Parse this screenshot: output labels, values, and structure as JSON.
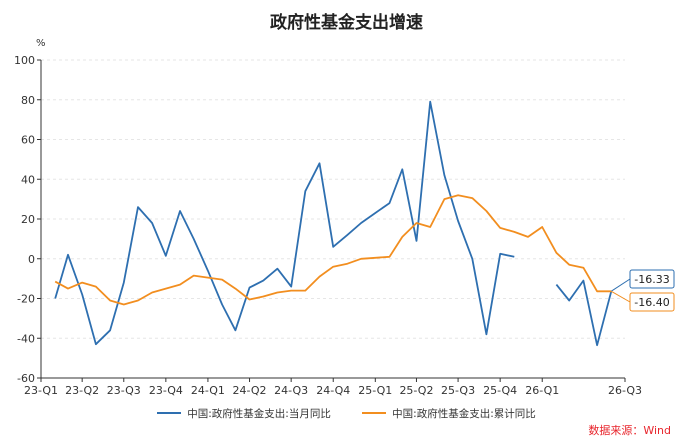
{
  "chart_data": {
    "type": "line",
    "title": "政府性基金支出增速",
    "unit": "%",
    "ylim": [
      -60,
      100
    ],
    "yticks": [
      -60,
      -40,
      -20,
      0,
      20,
      40,
      60,
      80,
      100
    ],
    "x_tick_labels": [
      "23-Q1",
      "23-Q2",
      "23-Q3",
      "23-Q4",
      "24-Q1",
      "24-Q2",
      "24-Q3",
      "24-Q4",
      "25-Q1",
      "25-Q2",
      "25-Q3",
      "25-Q4",
      "26-Q1",
      "26-Q3"
    ],
    "x": [
      "2023-02",
      "2023-03",
      "2023-04",
      "2023-05",
      "2023-06",
      "2023-07",
      "2023-08",
      "2023-09",
      "2023-10",
      "2023-11",
      "2023-12",
      "2024-01",
      "2024-02",
      "2024-03",
      "2024-04",
      "2024-05",
      "2024-06",
      "2024-07",
      "2024-08",
      "2024-09",
      "2024-10",
      "2024-11",
      "2024-12",
      "2025-01",
      "2025-02",
      "2025-03",
      "2025-04",
      "2025-05",
      "2025-06",
      "2025-07",
      "2025-08",
      "2025-09",
      "2025-10",
      "2025-11",
      "2025-12",
      "2026-01",
      "2026-02",
      "2026-03",
      "2026-04",
      "2026-05",
      "2026-06"
    ],
    "grid": true,
    "legend_position": "bottom",
    "series": [
      {
        "name": "中国:政府性基金支出:当月同比",
        "color": "#2e6fb0",
        "values": [
          -20,
          2,
          -18,
          -43,
          -36,
          -12,
          26,
          18,
          1.5,
          24,
          10,
          -6,
          -23,
          -36,
          -14.5,
          -11,
          -5,
          -14,
          34,
          48,
          6,
          12,
          18,
          23,
          28,
          45,
          9,
          79,
          42,
          19,
          0,
          -38,
          2.5,
          1,
          null,
          null,
          -13,
          -21,
          -11,
          -43.5,
          -16.33
        ]
      },
      {
        "name": "中国:政府性基金支出:累计同比",
        "color": "#f28e1f",
        "values": [
          -11.5,
          -15,
          -12,
          -14,
          -21,
          -23,
          -21,
          -17,
          -15,
          -13,
          -8.5,
          -9.5,
          -10.5,
          -15,
          -20.5,
          -19,
          -17,
          -16,
          -16,
          -9,
          -4,
          -2.5,
          0,
          0.5,
          1,
          11,
          18,
          16,
          30,
          32,
          30.5,
          24,
          15.5,
          13.5,
          11,
          16,
          3,
          -3,
          -4.5,
          -16.4,
          -16.4
        ]
      }
    ],
    "end_labels": [
      "-16.33",
      "-16.40"
    ]
  },
  "source_note": "数据来源：Wind"
}
